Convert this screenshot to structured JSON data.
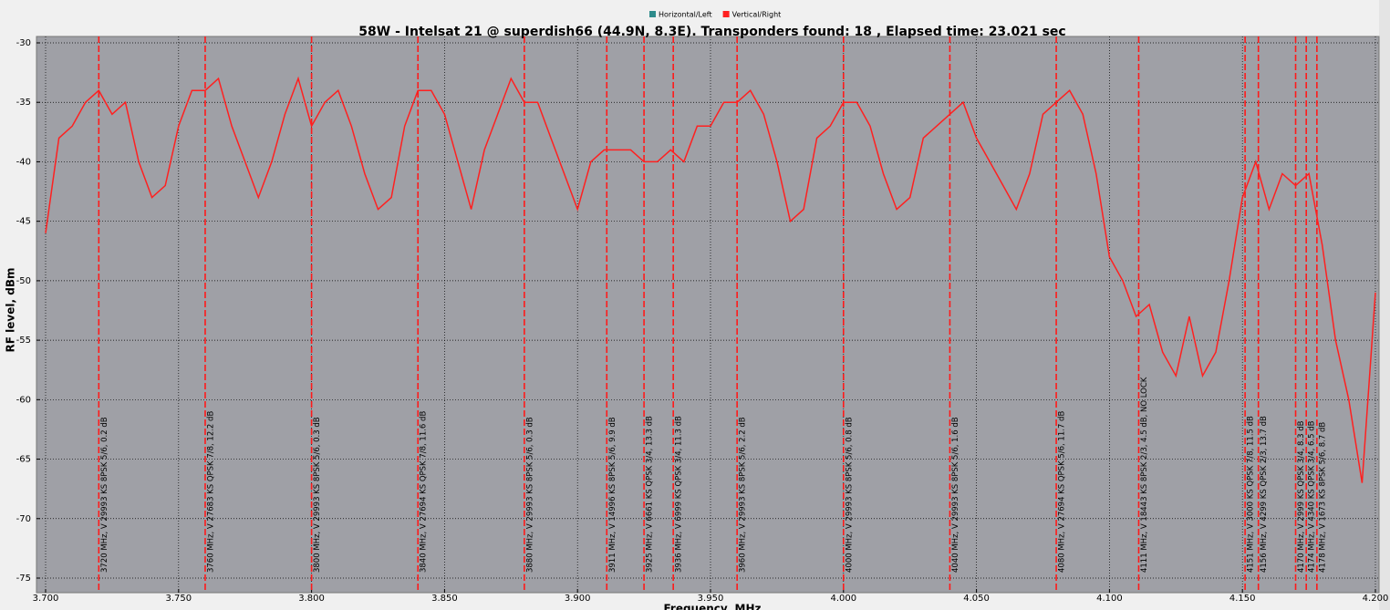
{
  "chart_data": {
    "type": "line",
    "title": "58W - Intelsat 21 @ superdish66 (44.9N, 8.3E). Transponders found: 18 , Elapsed time: 23.021 sec",
    "x_label": "Frequency, MHz",
    "y_label": "RF level, dBm",
    "legend_entries": [
      {
        "name": "Horizontal/Left",
        "color": "#2e8b8b"
      },
      {
        "name": "Vertical/Right",
        "color": "#ff2020"
      }
    ],
    "xlim": [
      3.7,
      4.2
    ],
    "ylim": [
      -75,
      -30
    ],
    "xticks": [
      {
        "value": 3.7,
        "label": "3.700"
      },
      {
        "value": 3.75,
        "label": "3.750"
      },
      {
        "value": 3.8,
        "label": "3.800"
      },
      {
        "value": 3.85,
        "label": "3.850"
      },
      {
        "value": 3.9,
        "label": "3.900"
      },
      {
        "value": 3.95,
        "label": "3.950"
      },
      {
        "value": 4.0,
        "label": "4.000"
      },
      {
        "value": 4.05,
        "label": "4.050"
      },
      {
        "value": 4.1,
        "label": "4.100"
      },
      {
        "value": 4.15,
        "label": "4.150"
      },
      {
        "value": 4.2,
        "label": "4.200"
      }
    ],
    "yticks": [
      -30,
      -35,
      -40,
      -45,
      -50,
      -55,
      -60,
      -65,
      -70,
      -75
    ],
    "grid": true,
    "x": [
      3.7,
      3.705,
      3.71,
      3.715,
      3.72,
      3.725,
      3.73,
      3.735,
      3.74,
      3.745,
      3.75,
      3.755,
      3.76,
      3.765,
      3.77,
      3.775,
      3.78,
      3.785,
      3.79,
      3.795,
      3.8,
      3.805,
      3.81,
      3.815,
      3.82,
      3.825,
      3.83,
      3.835,
      3.84,
      3.845,
      3.85,
      3.855,
      3.86,
      3.865,
      3.87,
      3.875,
      3.88,
      3.885,
      3.89,
      3.895,
      3.9,
      3.905,
      3.91,
      3.915,
      3.92,
      3.925,
      3.93,
      3.935,
      3.94,
      3.945,
      3.95,
      3.955,
      3.96,
      3.965,
      3.97,
      3.975,
      3.98,
      3.985,
      3.99,
      3.995,
      4.0,
      4.005,
      4.01,
      4.015,
      4.02,
      4.025,
      4.03,
      4.035,
      4.04,
      4.045,
      4.05,
      4.055,
      4.06,
      4.065,
      4.07,
      4.075,
      4.08,
      4.085,
      4.09,
      4.095,
      4.1,
      4.105,
      4.11,
      4.115,
      4.12,
      4.125,
      4.13,
      4.135,
      4.14,
      4.145,
      4.15,
      4.155,
      4.16,
      4.165,
      4.17,
      4.175,
      4.18,
      4.185,
      4.19,
      4.195,
      4.2
    ],
    "series": [
      {
        "name": "Vertical/Right",
        "color": "#ff2020",
        "values": [
          -46,
          -38,
          -37,
          -35,
          -34,
          -36,
          -35,
          -40,
          -43,
          -42,
          -37,
          -34,
          -34,
          -33,
          -37,
          -40,
          -43,
          -40,
          -36,
          -33,
          -37,
          -35,
          -34,
          -37,
          -41,
          -44,
          -43,
          -37,
          -34,
          -34,
          -36,
          -40,
          -44,
          -39,
          -36,
          -33,
          -35,
          -35,
          -38,
          -41,
          -44,
          -40,
          -39,
          -39,
          -39,
          -40,
          -40,
          -39,
          -40,
          -37,
          -37,
          -35,
          -35,
          -34,
          -36,
          -40,
          -45,
          -44,
          -38,
          -37,
          -35,
          -35,
          -37,
          -41,
          -44,
          -43,
          -38,
          -37,
          -36,
          -35,
          -38,
          -40,
          -42,
          -44,
          -41,
          -36,
          -35,
          -34,
          -36,
          -41,
          -48,
          -50,
          -53,
          -52,
          -56,
          -58,
          -53,
          -58,
          -56,
          -50,
          -43,
          -40,
          -44,
          -41,
          -42,
          -41,
          -47,
          -55,
          -60,
          -67,
          -51
        ]
      }
    ],
    "markers": {
      "color": "#ff1a1a",
      "x": [
        3.72,
        3.76,
        3.8,
        3.84,
        3.88,
        3.911,
        3.925,
        3.936,
        3.96,
        4.0,
        4.04,
        4.08,
        4.111,
        4.151,
        4.156,
        4.17,
        4.174,
        4.178
      ],
      "labels": [
        "3720 MHz, V 29993 KS 8PSK 5/6, 0.2 dB",
        "3760 MHz, V 27683 KS QPSK 7/8, 12.2 dB",
        "3800 MHz, V 29993 KS 8PSK 5/6, 0.3 dB",
        "3840 MHz, V 27694 KS QPSK 7/8, 11.6 dB",
        "3880 MHz, V 29993 KS 8PSK 5/6, 0.3 dB",
        "3911 MHz, V 14996 KS 8PSK 5/6, 9.9 dB",
        "3925 MHz, V 6661 KS QPSK 3/4, 13.3 dB",
        "3936 MHz, V 6999 KS QPSK 3/4, 11.3 dB",
        "3960 MHz, V 29993 KS 8PSK 5/6, 2.2 dB",
        "4000 MHz, V 29993 KS 8PSK 5/6, 0.8 dB",
        "4040 MHz, V 29993 KS 8PSK 5/6, 1.6 dB",
        "4080 MHz, V 27694 KS QPSK 5/6, 11.7 dB",
        "4111 MHz, V 18443 KS 8PSK 2/3, 4.5 dB, NO LOCK",
        "4151 MHz, V 3000 KS QPSK 7/8, 11.5 dB",
        "4156 MHz, V 4299 KS QPSK 2/3, 13.7 dB",
        "4170 MHz, V 2999 KS QPSK 3/4, 8.3 dB",
        "4174 MHz, V 4340 KS QPSK 3/4, 6.5 dB",
        "4178 MHz, V 1673 KS 8PSK 5/6, 8.7 dB"
      ]
    }
  }
}
